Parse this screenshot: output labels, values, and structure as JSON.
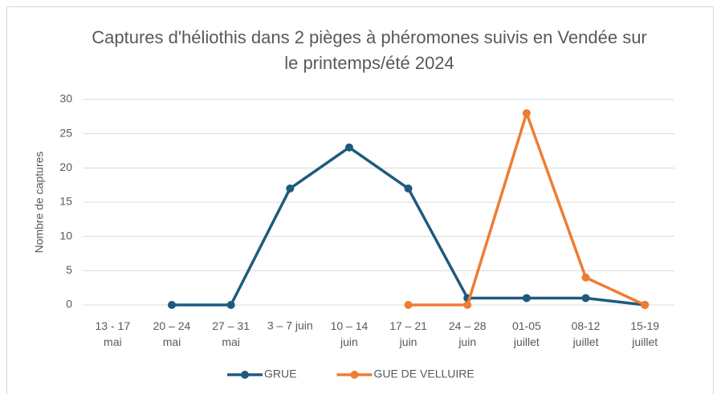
{
  "chart_data": {
    "type": "line",
    "title": "Captures d'héliothis dans 2 pièges à phéromones suivis en Vendée sur le printemps/été 2024",
    "y_label": "Nombre de captures",
    "categories": [
      "13 - 17 mai",
      "20 – 24 mai",
      "27 – 31 mai",
      "3 – 7 juin",
      "10 – 14 juin",
      "17 – 21 juin",
      "24 – 28 juin",
      "01-05 juillet",
      "08-12 juillet",
      "15-19 juillet"
    ],
    "series": [
      {
        "name": "GRUE",
        "color": "#1d5b7e",
        "values": [
          null,
          0,
          0,
          17,
          23,
          17,
          1,
          1,
          1,
          0
        ]
      },
      {
        "name": "GUE DE VELLUIRE",
        "color": "#ee7d31",
        "values": [
          null,
          null,
          null,
          null,
          null,
          0,
          0,
          28,
          4,
          0
        ]
      }
    ],
    "ylim": [
      0,
      30
    ],
    "yticks": [
      0,
      5,
      10,
      15,
      20,
      25,
      30
    ],
    "grid": true,
    "legend": "bottom"
  }
}
